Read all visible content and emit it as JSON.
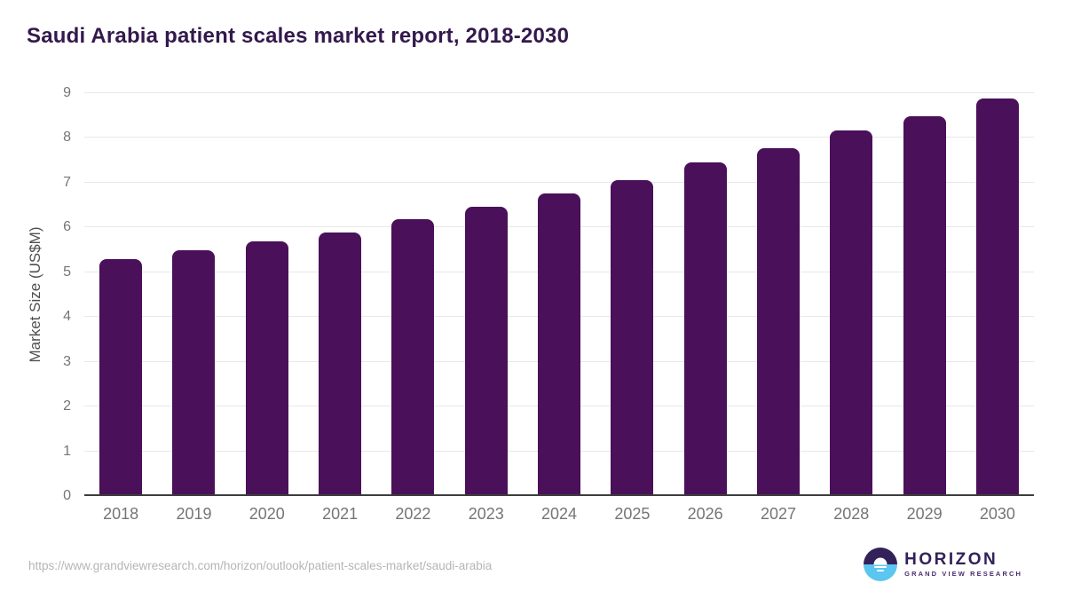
{
  "title": "Saudi Arabia patient scales market report, 2018-2030",
  "colors": {
    "bar": "#4a1059",
    "title": "#33194d",
    "grid": "#e8e8e8",
    "axis": "#3d3d3d",
    "tick": "#757575",
    "axis_label": "#4f4f4f",
    "url": "#b5b5b5",
    "logo_purple": "#33215a",
    "logo_blue": "#5bc6f0",
    "logo_subtitle": "#4a2d6e"
  },
  "chart_data": {
    "type": "bar",
    "categories": [
      "2018",
      "2019",
      "2020",
      "2021",
      "2022",
      "2023",
      "2024",
      "2025",
      "2026",
      "2027",
      "2028",
      "2029",
      "2030"
    ],
    "values": [
      5.3,
      5.49,
      5.69,
      5.88,
      6.18,
      6.47,
      6.77,
      7.06,
      7.46,
      7.77,
      8.17,
      8.49,
      8.89
    ],
    "title": "Saudi Arabia patient scales market report, 2018-2030",
    "xlabel": "",
    "ylabel": "Market Size (US$M)",
    "ylim": [
      0,
      9
    ],
    "yticks": [
      0,
      1,
      2,
      3,
      4,
      5,
      6,
      7,
      8,
      9
    ],
    "grid": true,
    "legend": "none",
    "bar_color": "#4a1059"
  },
  "footer": {
    "source_url": "https://www.grandviewresearch.com/horizon/outlook/patient-scales-market/saudi-arabia",
    "logo": {
      "name": "HORIZON",
      "subtitle": "GRAND VIEW RESEARCH"
    }
  }
}
